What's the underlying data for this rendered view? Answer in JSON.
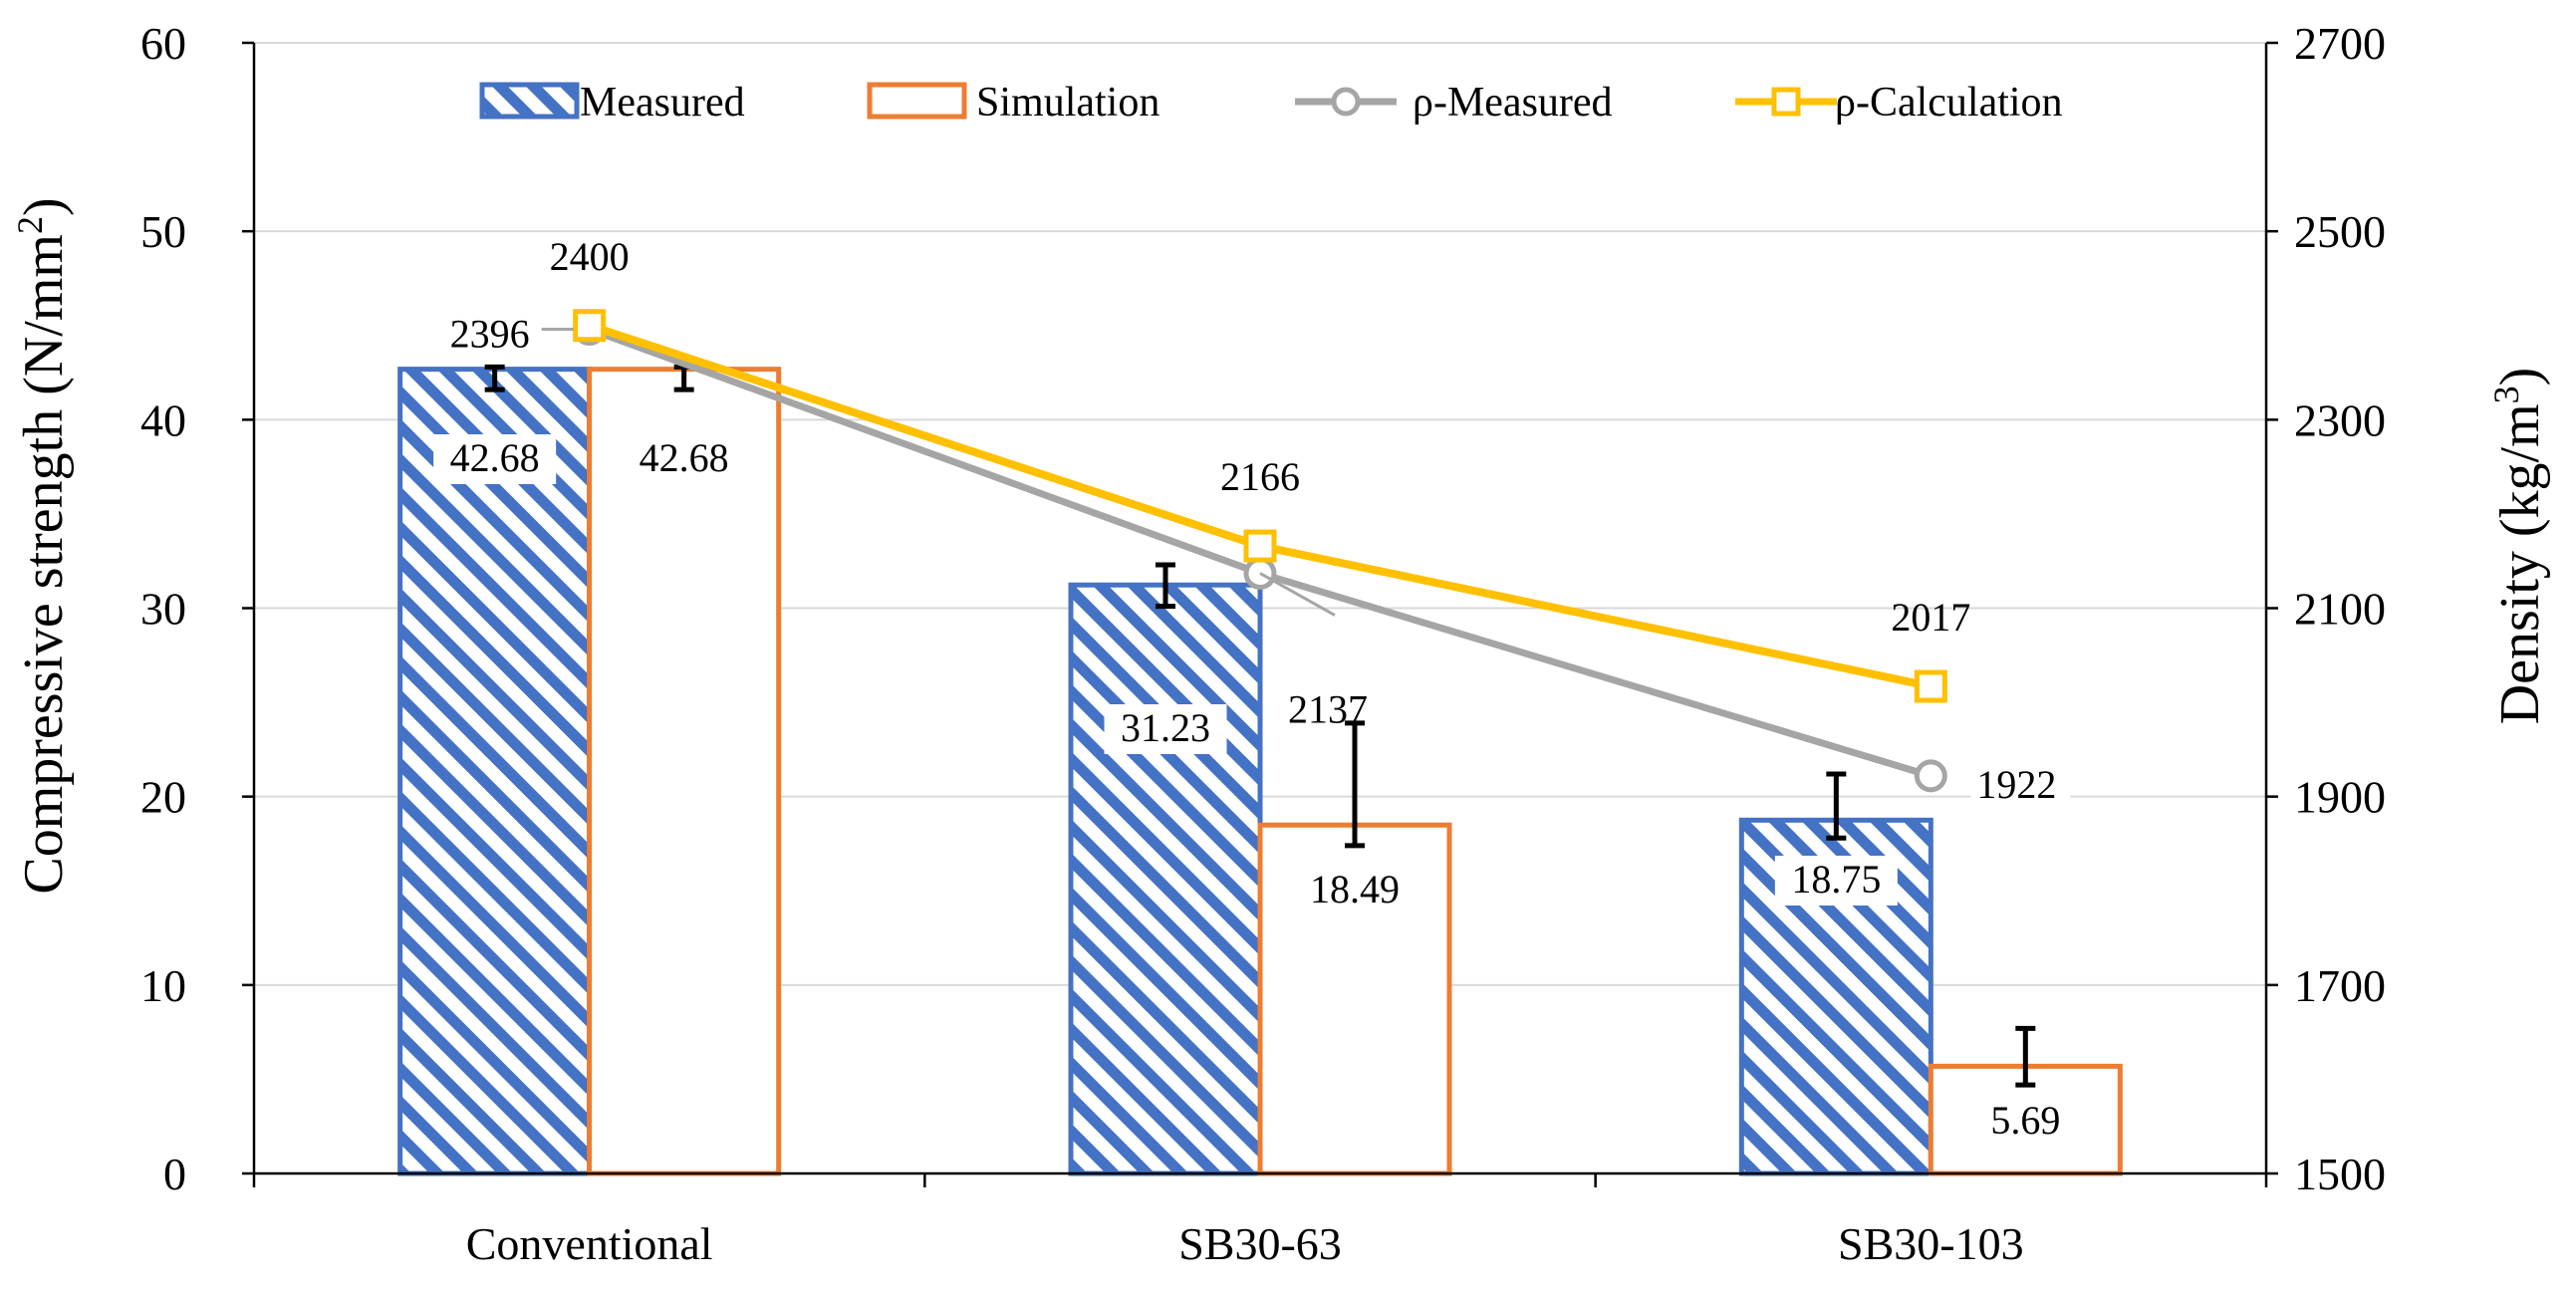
{
  "chart_data": {
    "type": "bar",
    "categories": [
      "Conventional",
      "SB30-63",
      "SB30-103"
    ],
    "ylabel": "Compressive strength (N/mm",
    "ylabel_sup": "2",
    "ylabel_close": ")",
    "y2label": "Density (kg/m",
    "y2label_sup": "3",
    "y2label_close": ")",
    "ylim": [
      0,
      60
    ],
    "yticks": [
      0,
      10,
      20,
      30,
      40,
      50,
      60
    ],
    "y2lim": [
      1500,
      2700
    ],
    "y2ticks": [
      1500,
      1700,
      1900,
      2100,
      2300,
      2500,
      2700
    ],
    "grid": true,
    "legend_position": "top",
    "bar_series": [
      {
        "name": "Measured",
        "style": "hatched",
        "color": "#4472C4",
        "values": [
          42.68,
          31.23,
          18.75
        ],
        "labels": [
          "42.68",
          "31.23",
          "18.75"
        ],
        "error_low": [
          41.6,
          30.1,
          17.8
        ],
        "error_high": [
          42.8,
          32.3,
          21.2
        ]
      },
      {
        "name": "Simulation",
        "style": "outline",
        "color": "#ED7D31",
        "values": [
          42.68,
          18.49,
          5.69
        ],
        "labels": [
          "42.68",
          "18.49",
          "5.69"
        ],
        "error_low": [
          41.6,
          17.4,
          4.7
        ],
        "error_high": [
          42.8,
          23.9,
          7.7
        ]
      }
    ],
    "line_series": [
      {
        "name": "ρ-Measured",
        "color": "#A5A5A5",
        "marker": "circle",
        "values": [
          2396,
          2137,
          1922
        ],
        "labels": [
          "2396",
          "2137",
          "1922"
        ]
      },
      {
        "name": "ρ-Calculation",
        "color": "#FFC000",
        "marker": "square",
        "values": [
          2400,
          2166,
          2017
        ],
        "labels": [
          "2400",
          "2166",
          "2017"
        ]
      }
    ]
  }
}
